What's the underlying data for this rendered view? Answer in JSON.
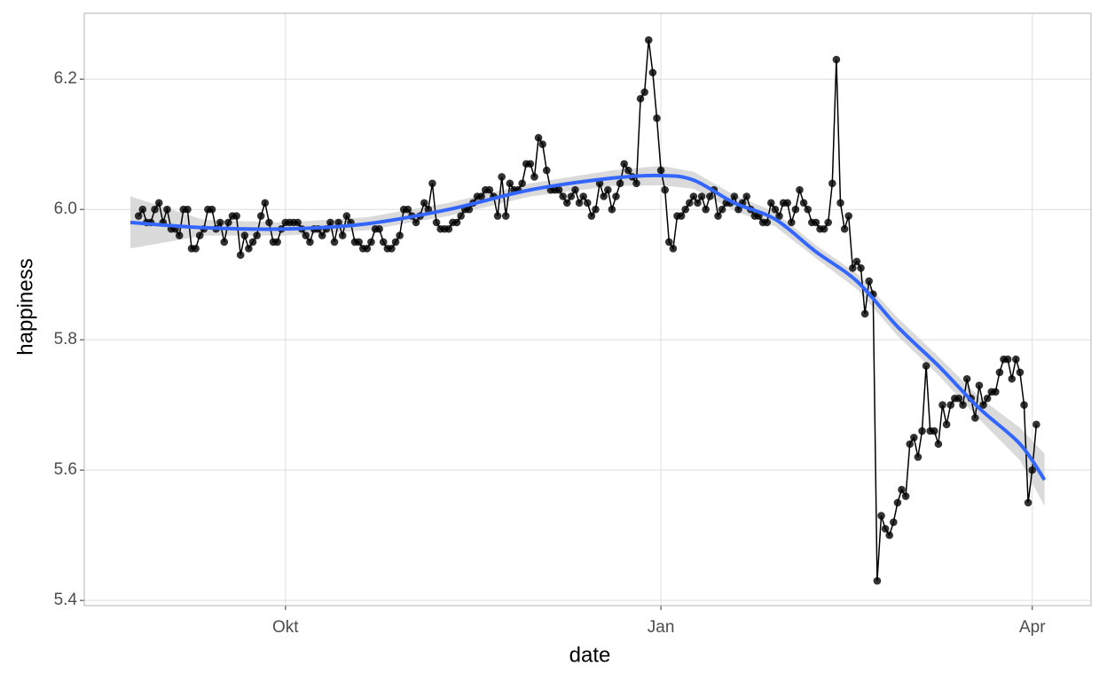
{
  "chart_data": {
    "type": "line",
    "x_label": "date",
    "y_label": "happiness",
    "x": [
      -36,
      -35,
      -34,
      -33,
      -32,
      -31,
      -30,
      -29,
      -28,
      -27,
      -26,
      -25,
      -24,
      -23,
      -22,
      -21,
      -20,
      -19,
      -18,
      -17,
      -16,
      -15,
      -14,
      -13,
      -12,
      -11,
      -10,
      -9,
      -8,
      -7,
      -6,
      -5,
      -4,
      -3,
      -2,
      -1,
      0,
      1,
      2,
      3,
      4,
      5,
      6,
      7,
      8,
      9,
      10,
      11,
      12,
      13,
      14,
      15,
      16,
      17,
      18,
      19,
      20,
      21,
      22,
      23,
      24,
      25,
      26,
      27,
      28,
      29,
      30,
      31,
      32,
      33,
      34,
      35,
      36,
      37,
      38,
      39,
      40,
      41,
      42,
      43,
      44,
      45,
      46,
      47,
      48,
      49,
      50,
      51,
      52,
      53,
      54,
      55,
      56,
      57,
      58,
      59,
      60,
      61,
      62,
      63,
      64,
      65,
      66,
      67,
      68,
      69,
      70,
      71,
      72,
      73,
      74,
      75,
      76,
      77,
      78,
      79,
      80,
      81,
      82,
      83,
      84,
      85,
      86,
      87,
      88,
      89,
      90,
      91,
      92,
      93,
      94,
      95,
      96,
      97,
      98,
      99,
      100,
      101,
      102,
      103,
      104,
      105,
      106,
      107,
      108,
      109,
      110,
      111,
      112,
      113,
      114,
      115,
      116,
      117,
      118,
      119,
      120,
      121,
      122,
      123,
      124,
      125,
      126,
      127,
      128,
      129,
      130,
      131,
      132,
      133,
      134,
      135,
      136,
      137,
      138,
      139,
      140,
      141,
      142,
      143,
      144,
      145,
      146,
      147,
      148,
      149,
      150,
      151,
      152,
      153,
      154,
      155,
      156,
      157,
      158,
      159,
      160,
      161,
      162,
      163,
      164,
      165,
      166,
      167,
      168,
      169,
      170,
      171,
      172,
      173,
      174,
      175,
      176,
      177,
      178,
      179,
      180,
      181,
      182,
      183,
      184
    ],
    "values": [
      5.99,
      6.0,
      5.98,
      5.98,
      6.0,
      6.01,
      5.98,
      6.0,
      5.97,
      5.97,
      5.96,
      6.0,
      6.0,
      5.94,
      5.94,
      5.96,
      5.97,
      6.0,
      6.0,
      5.97,
      5.98,
      5.95,
      5.98,
      5.99,
      5.99,
      5.93,
      5.96,
      5.94,
      5.95,
      5.96,
      5.99,
      6.01,
      5.98,
      5.95,
      5.95,
      5.97,
      5.98,
      5.98,
      5.98,
      5.98,
      5.97,
      5.96,
      5.95,
      5.97,
      5.97,
      5.96,
      5.97,
      5.98,
      5.95,
      5.98,
      5.96,
      5.99,
      5.98,
      5.95,
      5.95,
      5.94,
      5.94,
      5.95,
      5.97,
      5.97,
      5.95,
      5.94,
      5.94,
      5.95,
      5.96,
      6.0,
      6.0,
      5.99,
      5.98,
      5.99,
      6.01,
      6.0,
      6.04,
      5.98,
      5.97,
      5.97,
      5.97,
      5.98,
      5.98,
      5.99,
      6.0,
      6.0,
      6.01,
      6.02,
      6.02,
      6.03,
      6.03,
      6.02,
      5.99,
      6.05,
      5.99,
      6.04,
      6.03,
      6.03,
      6.04,
      6.07,
      6.07,
      6.05,
      6.11,
      6.1,
      6.06,
      6.03,
      6.03,
      6.03,
      6.02,
      6.01,
      6.02,
      6.03,
      6.01,
      6.02,
      6.01,
      5.99,
      6.0,
      6.04,
      6.02,
      6.03,
      6.0,
      6.02,
      6.04,
      6.07,
      6.06,
      6.05,
      6.04,
      6.17,
      6.18,
      6.26,
      6.21,
      6.14,
      6.06,
      6.03,
      5.95,
      5.94,
      5.99,
      5.99,
      6.0,
      6.01,
      6.02,
      6.01,
      6.02,
      6.0,
      6.02,
      6.03,
      5.99,
      6.0,
      6.01,
      6.01,
      6.02,
      6.0,
      6.01,
      6.02,
      6.0,
      5.99,
      5.99,
      5.98,
      5.98,
      6.01,
      6.0,
      5.99,
      6.01,
      6.01,
      5.98,
      6.0,
      6.03,
      6.01,
      6.0,
      5.98,
      5.98,
      5.97,
      5.97,
      5.98,
      6.04,
      6.23,
      6.01,
      5.97,
      5.99,
      5.91,
      5.92,
      5.91,
      5.84,
      5.89,
      5.87,
      5.43,
      5.53,
      5.51,
      5.5,
      5.52,
      5.55,
      5.57,
      5.56,
      5.64,
      5.65,
      5.62,
      5.66,
      5.76,
      5.66,
      5.66,
      5.64,
      5.7,
      5.67,
      5.7,
      5.71,
      5.71,
      5.7,
      5.74,
      5.71,
      5.68,
      5.73,
      5.7,
      5.71,
      5.72,
      5.72,
      5.75,
      5.77,
      5.77,
      5.74,
      5.77,
      5.75,
      5.7,
      5.55,
      5.6,
      5.67
    ],
    "color": "#000000",
    "smooth": {
      "x": [
        -38,
        -20,
        0,
        20,
        40,
        60,
        80,
        92,
        100,
        110,
        120,
        130,
        140,
        150,
        160,
        170,
        180,
        186
      ],
      "values": [
        5.98,
        5.972,
        5.97,
        5.978,
        6.0,
        6.03,
        6.048,
        6.052,
        6.045,
        6.01,
        5.985,
        5.935,
        5.89,
        5.82,
        5.76,
        5.695,
        5.64,
        5.585
      ],
      "lower": [
        5.94,
        5.96,
        5.96,
        5.968,
        5.99,
        6.02,
        6.036,
        6.037,
        6.032,
        5.998,
        5.974,
        5.925,
        5.878,
        5.806,
        5.746,
        5.678,
        5.615,
        5.545
      ],
      "upper": [
        6.02,
        5.984,
        5.98,
        5.988,
        6.01,
        6.04,
        6.06,
        6.067,
        6.058,
        6.022,
        5.996,
        5.945,
        5.902,
        5.834,
        5.774,
        5.712,
        5.665,
        5.625
      ],
      "color": "#3366ff",
      "band_color": "#d3d3d3"
    },
    "xlim": [
      -49.3,
      197.4
    ],
    "ylim": [
      5.392,
      6.301
    ],
    "xticks": [
      {
        "value": 0,
        "label": "Okt"
      },
      {
        "value": 92,
        "label": "Jan"
      },
      {
        "value": 183,
        "label": "Apr"
      }
    ],
    "yticks": [
      5.4,
      5.6,
      5.8,
      {
        "value": 6,
        "label": "6.0"
      },
      6.2
    ],
    "grid": true
  }
}
